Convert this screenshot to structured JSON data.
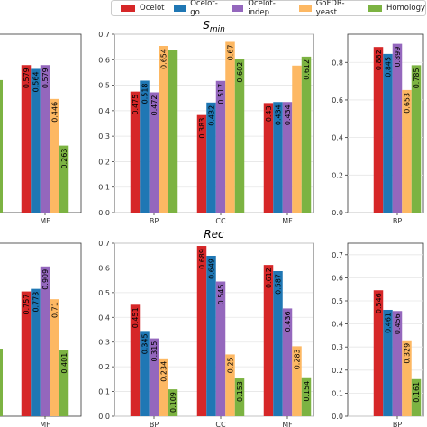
{
  "colors": {
    "Ocelot": "#d62728",
    "Ocelot-go": "#1f77b4",
    "Ocelot-indep": "#9467bd",
    "GoFDR-yeast": "#fdb863",
    "Homology": "#7cb342"
  },
  "legend": [
    "Ocelot",
    "Ocelot-go",
    "Ocelot-indep",
    "GoFDR-yeast",
    "Homology"
  ],
  "chart_data": [
    {
      "type": "bar",
      "row": 0,
      "col": 0,
      "title": "",
      "categories": [
        "MF"
      ],
      "ylim": [
        0,
        0.7
      ],
      "yticks": [],
      "series": [
        {
          "name": "Ocelot",
          "values": [
            0.579
          ]
        },
        {
          "name": "Ocelot-go",
          "values": [
            0.564
          ]
        },
        {
          "name": "Ocelot-indep",
          "values": [
            0.579
          ]
        },
        {
          "name": "GoFDR-yeast",
          "values": [
            0.446
          ]
        },
        {
          "name": "Homology",
          "values": [
            0.263
          ]
        }
      ],
      "extra_bars": [
        {
          "series": "Homology",
          "value": 0.52
        }
      ]
    },
    {
      "type": "bar",
      "row": 0,
      "col": 1,
      "title": "S_min",
      "categories": [
        "BP",
        "CC",
        "MF"
      ],
      "ylim": [
        0,
        0.7
      ],
      "yticks": [
        "0.0",
        "0.1",
        "0.2",
        "0.3",
        "0.4",
        "0.5",
        "0.6",
        "0.7"
      ],
      "series": [
        {
          "name": "Ocelot",
          "values": [
            0.475,
            0.383,
            0.43
          ]
        },
        {
          "name": "Ocelot-go",
          "values": [
            0.518,
            0.432,
            0.434
          ]
        },
        {
          "name": "Ocelot-indep",
          "values": [
            0.472,
            0.517,
            0.434
          ]
        },
        {
          "name": "GoFDR-yeast",
          "values": [
            0.654,
            0.67,
            0.577
          ]
        },
        {
          "name": "Homology",
          "values": [
            0.637,
            0.602,
            0.612
          ]
        }
      ],
      "bar_labels": [
        [
          "0.475",
          "0.383",
          "0.43"
        ],
        [
          "0.518",
          "0.432",
          "0.434"
        ],
        [
          "0.472",
          "0.517",
          "0.434"
        ],
        [
          "0.654",
          "0.67",
          ""
        ],
        [
          "",
          "0.602",
          "0.612"
        ]
      ]
    },
    {
      "type": "bar",
      "row": 0,
      "col": 2,
      "title": "",
      "categories": [
        "BP"
      ],
      "ylim": [
        0,
        0.95
      ],
      "yticks": [
        "0.0",
        "0.2",
        "0.4",
        "0.6",
        "0.8"
      ],
      "series": [
        {
          "name": "Ocelot",
          "values": [
            0.882
          ]
        },
        {
          "name": "Ocelot-go",
          "values": [
            0.845
          ]
        },
        {
          "name": "Ocelot-indep",
          "values": [
            0.899
          ]
        },
        {
          "name": "GoFDR-yeast",
          "values": [
            0.653
          ]
        },
        {
          "name": "Homology",
          "values": [
            0.785
          ]
        }
      ]
    },
    {
      "type": "bar",
      "row": 1,
      "col": 0,
      "title": "",
      "categories": [
        "MF"
      ],
      "ylim": [
        0,
        1.05
      ],
      "yticks": [],
      "series": [
        {
          "name": "Ocelot",
          "values": [
            0.757
          ]
        },
        {
          "name": "Ocelot-go",
          "values": [
            0.773
          ]
        },
        {
          "name": "Ocelot-indep",
          "values": [
            0.909
          ]
        },
        {
          "name": "GoFDR-yeast",
          "values": [
            0.71
          ]
        },
        {
          "name": "Homology",
          "values": [
            0.401
          ]
        }
      ],
      "extra_bars": [
        {
          "series": "Homology",
          "value": 0.41
        }
      ]
    },
    {
      "type": "bar",
      "row": 1,
      "col": 1,
      "title": "Rec",
      "categories": [
        "BP",
        "CC",
        "MF"
      ],
      "ylim": [
        0,
        0.7
      ],
      "yticks": [
        "0.0",
        "0.1",
        "0.2",
        "0.3",
        "0.4",
        "0.5",
        "0.6",
        "0.7"
      ],
      "series": [
        {
          "name": "Ocelot",
          "values": [
            0.451,
            0.689,
            0.612
          ]
        },
        {
          "name": "Ocelot-go",
          "values": [
            0.345,
            0.649,
            0.587
          ]
        },
        {
          "name": "Ocelot-indep",
          "values": [
            0.315,
            0.545,
            0.436
          ]
        },
        {
          "name": "GoFDR-yeast",
          "values": [
            0.234,
            0.25,
            0.283
          ]
        },
        {
          "name": "Homology",
          "values": [
            0.109,
            0.153,
            0.154
          ]
        }
      ]
    },
    {
      "type": "bar",
      "row": 1,
      "col": 2,
      "title": "",
      "categories": [
        "BP"
      ],
      "ylim": [
        0,
        0.75
      ],
      "yticks": [
        "0.0",
        "0.1",
        "0.2",
        "0.3",
        "0.4",
        "0.5",
        "0.6",
        "0.7"
      ],
      "series": [
        {
          "name": "Ocelot",
          "values": [
            0.546
          ]
        },
        {
          "name": "Ocelot-go",
          "values": [
            0.461
          ]
        },
        {
          "name": "Ocelot-indep",
          "values": [
            0.456
          ]
        },
        {
          "name": "GoFDR-yeast",
          "values": [
            0.329
          ]
        },
        {
          "name": "Homology",
          "values": [
            0.161
          ]
        }
      ]
    }
  ]
}
